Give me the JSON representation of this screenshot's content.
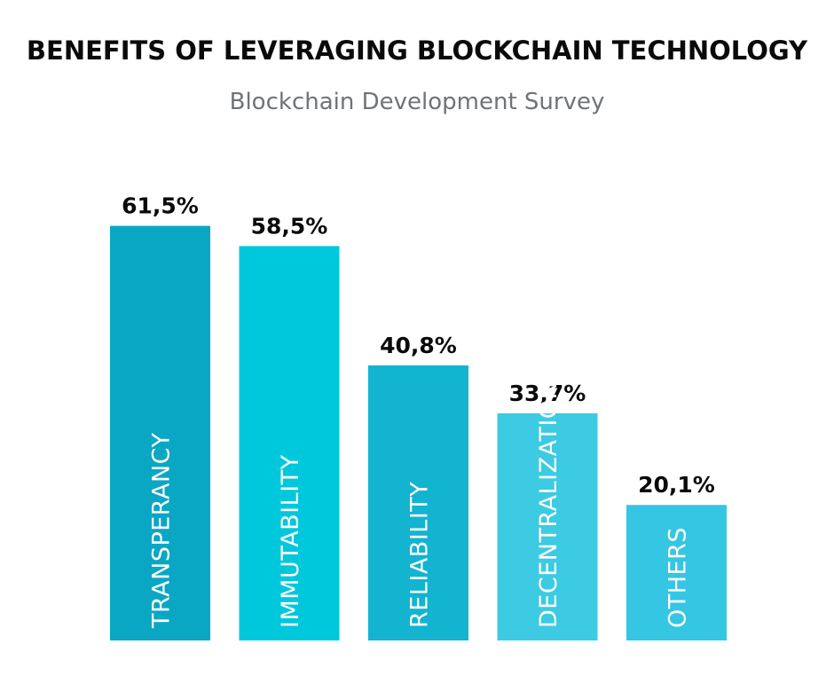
{
  "title": "BENEFITS OF LEVERAGING BLOCKCHAIN TECHNOLOGY",
  "subtitle": "Blockchain Development Survey",
  "chart_data": {
    "type": "bar",
    "title": "BENEFITS OF LEVERAGING BLOCKCHAIN TECHNOLOGY",
    "subtitle": "Blockchain Development Survey",
    "categories": [
      "TRANSPERANCY",
      "IMMUTABILITY",
      "RELIABILITY",
      "DECENTRALIZATION",
      "OTHERS"
    ],
    "values": [
      61.5,
      58.5,
      40.8,
      33.7,
      20.1
    ],
    "value_labels": [
      "61,5%",
      "58,5%",
      "40,8%",
      "33,7%",
      "20,1%"
    ],
    "colors": [
      "#0aa7c4",
      "#00c8dc",
      "#12b4d0",
      "#3ccbe2",
      "#35c6e3"
    ],
    "xlabel": "",
    "ylabel": "",
    "ylim": [
      0,
      100
    ],
    "grid": false,
    "legend": "none"
  }
}
